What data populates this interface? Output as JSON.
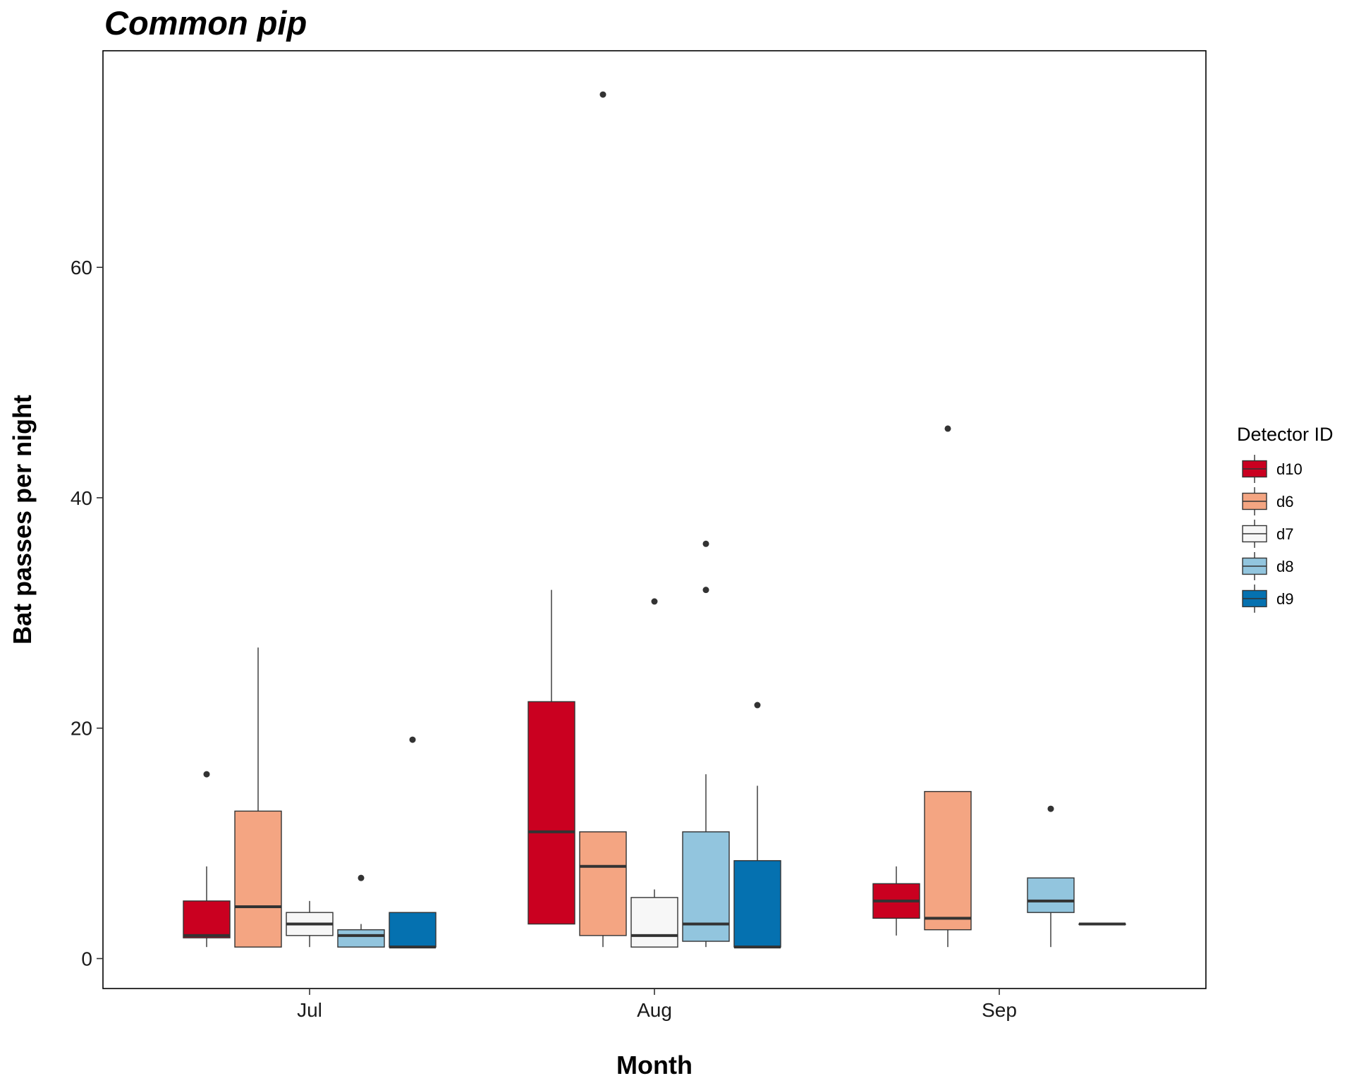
{
  "chart_data": {
    "type": "boxplot",
    "title": "Common pip",
    "xlabel": "Month",
    "ylabel": "Bat passes per night",
    "categories": [
      "Jul",
      "Aug",
      "Sep"
    ],
    "y_ticks": [
      0,
      20,
      40,
      60
    ],
    "ylim": [
      -2.6,
      78.8
    ],
    "grid": false,
    "legend": {
      "title": "Detector ID",
      "position": "right"
    },
    "series": [
      {
        "name": "d10",
        "color": "#CA0020",
        "boxes": [
          {
            "min": 1,
            "q1": 1.8,
            "median": 2,
            "q3": 5,
            "max": 8,
            "outliers": [
              16
            ]
          },
          {
            "min": 3,
            "q1": 3,
            "median": 11,
            "q3": 22.3,
            "max": 32,
            "outliers": []
          },
          {
            "min": 2,
            "q1": 3.5,
            "median": 5,
            "q3": 6.5,
            "max": 8,
            "outliers": []
          }
        ]
      },
      {
        "name": "d6",
        "color": "#F4A582",
        "boxes": [
          {
            "min": 1,
            "q1": 1,
            "median": 4.5,
            "q3": 12.8,
            "max": 27,
            "outliers": []
          },
          {
            "min": 1,
            "q1": 2,
            "median": 8,
            "q3": 11,
            "max": 11,
            "outliers": [
              75
            ]
          },
          {
            "min": 1,
            "q1": 2.5,
            "median": 3.5,
            "q3": 14.5,
            "max": 14.5,
            "outliers": [
              46
            ]
          }
        ]
      },
      {
        "name": "d7",
        "color": "#F7F7F7",
        "boxes": [
          {
            "min": 1,
            "q1": 2,
            "median": 3,
            "q3": 4,
            "max": 5,
            "outliers": []
          },
          {
            "min": 1,
            "q1": 1,
            "median": 2,
            "q3": 5.3,
            "max": 6,
            "outliers": [
              31
            ]
          },
          null
        ]
      },
      {
        "name": "d8",
        "color": "#92C5DE",
        "boxes": [
          {
            "min": 1,
            "q1": 1,
            "median": 2,
            "q3": 2.5,
            "max": 3,
            "outliers": [
              7
            ]
          },
          {
            "min": 1,
            "q1": 1.5,
            "median": 3,
            "q3": 11,
            "max": 16,
            "outliers": [
              32,
              36
            ]
          },
          {
            "min": 1,
            "q1": 4,
            "median": 5,
            "q3": 7,
            "max": 7,
            "outliers": [
              13
            ]
          }
        ]
      },
      {
        "name": "d9",
        "color": "#0571B0",
        "boxes": [
          {
            "min": 1,
            "q1": 1,
            "median": 1,
            "q3": 4,
            "max": 4,
            "outliers": [
              19
            ]
          },
          {
            "min": 1,
            "q1": 1,
            "median": 1,
            "q3": 8.5,
            "max": 15,
            "outliers": [
              22
            ]
          },
          {
            "min": 3,
            "q1": 3,
            "median": 3,
            "q3": 3,
            "max": 3,
            "outliers": []
          }
        ]
      }
    ]
  }
}
